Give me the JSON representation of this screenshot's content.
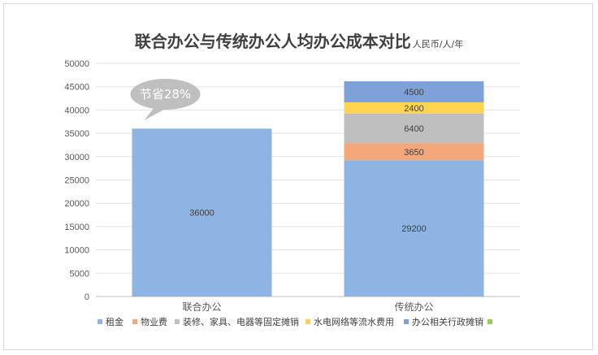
{
  "chart_data": {
    "type": "bar",
    "stacked": true,
    "title": "联合办公与传统办公人均办公成本对比",
    "title_unit": "人民币/人/年",
    "categories": [
      "联合办公",
      "传统办公"
    ],
    "ylim": [
      0,
      50000
    ],
    "yticks": [
      0,
      5000,
      10000,
      15000,
      20000,
      25000,
      30000,
      35000,
      40000,
      45000,
      50000
    ],
    "grid": true,
    "legend_position": "bottom",
    "series": [
      {
        "name": "租金",
        "color": "#8db4e2",
        "values": [
          36000,
          29200
        ]
      },
      {
        "name": "物业费",
        "color": "#f4a77a",
        "values": [
          0,
          3650
        ]
      },
      {
        "name": "装修、家具、电器等固定摊销",
        "color": "#bfbfbf",
        "values": [
          0,
          6400
        ]
      },
      {
        "name": "水电网络等流水费用",
        "color": "#ffd44f",
        "values": [
          0,
          2400
        ]
      },
      {
        "name": "办公相关行政摊销",
        "color": "#7ea1d9",
        "values": [
          0,
          4500
        ]
      },
      {
        "name": "",
        "color": "#92d050",
        "values": [
          0,
          0
        ]
      }
    ],
    "annotation": {
      "text": "节省28%",
      "category": "联合办公"
    }
  }
}
